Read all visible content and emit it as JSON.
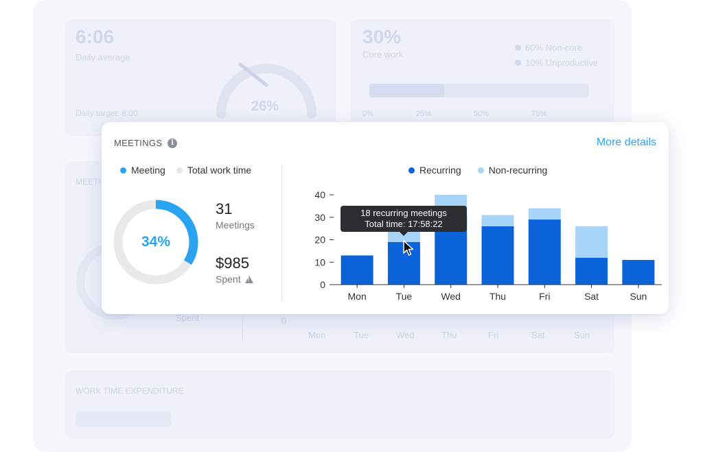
{
  "background": {
    "daily_average_value": "6:06",
    "daily_average_label": "Daily average",
    "daily_target": "Daily target: 8:00",
    "gauge_value": "26%",
    "core_work_value": "30%",
    "core_work_label": "Core work",
    "core_legend": [
      "60% Non-core",
      "10% Unproductive"
    ],
    "ticks": [
      "0%",
      "25%",
      "50%",
      "75%"
    ],
    "meetings_label": "MEETI",
    "spent_label": "Spent",
    "days": [
      "Mon",
      "Tue",
      "Wed",
      "Thu",
      "Fri",
      "Sat",
      "Sun"
    ],
    "zero": "0",
    "work_time_expenditure": "WORK TIME EXPENDITURE"
  },
  "card": {
    "title": "MEETINGS",
    "info_icon": "i",
    "more_details": "More details",
    "legend_left": [
      {
        "label": "Meeting",
        "color": "#2aa3f2"
      },
      {
        "label": "Total work time",
        "color": "#e6e6e6"
      }
    ],
    "donut": {
      "percent": 34,
      "label": "34%",
      "color": "#2aa3f2",
      "track_color": "#e9e9e9"
    },
    "meetings_count": "31",
    "meetings_label": "Meetings",
    "spent_value": "$985",
    "spent_label": "Spent",
    "legend_right": [
      {
        "label": "Recurring",
        "color": "#0b63d9"
      },
      {
        "label": "Non-recurring",
        "color": "#a8d4f7"
      }
    ],
    "tooltip": {
      "line1": "18 recurring meetings",
      "line2": "Total time: 17:58:22"
    }
  },
  "chart_data": {
    "type": "bar",
    "stacked": true,
    "categories": [
      "Mon",
      "Tue",
      "Wed",
      "Thu",
      "Fri",
      "Sat",
      "Sun"
    ],
    "series": [
      {
        "name": "Recurring",
        "color": "#0b63d9",
        "values": [
          13,
          19,
          31,
          26,
          29,
          12,
          11
        ]
      },
      {
        "name": "Non-recurring",
        "color": "#a8d4f7",
        "values": [
          0,
          5,
          9,
          5,
          5,
          14,
          0
        ]
      }
    ],
    "ylim": [
      0,
      40
    ],
    "yticks": [
      0,
      10,
      20,
      30,
      40
    ],
    "grid": false
  }
}
